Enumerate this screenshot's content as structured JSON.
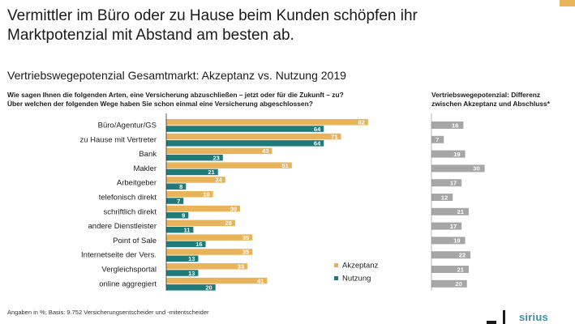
{
  "headline": {
    "line1": "Vermittler im Büro oder zu Hause beim Kunden schöpfen ihr",
    "line2": "Marktpotenzial mit Abstand am besten ab."
  },
  "subtitle": "Vertriebswegepotenzial Gesamtmarkt: Akzeptanz vs. Nutzung 2019",
  "question": {
    "line1": "Wie sagen Ihnen die folgenden Arten, eine Versicherung abzuschließen – jetzt oder für die Zukunft – zu?",
    "line2": "Über welchen der folgenden Wege haben Sie schon einmal eine Versicherung abgeschlossen?"
  },
  "diff_title": {
    "line1": "Vertriebswegepotenzial: Differenz",
    "line2": "zwischen Akzeptanz und Abschluss*"
  },
  "footnote": "Angaben in %; Basis: 9.752 Versicherungsentscheider und -mitentscheider",
  "logo": "sirius",
  "colors": {
    "akzeptanz": "#e9b35a",
    "nutzung": "#1f7a7a",
    "differenz": "#a6a6a6"
  },
  "chart_data": [
    {
      "type": "bar",
      "orientation": "horizontal",
      "categories": [
        "Büro/Agentur/GS",
        "zu Hause mit Vertreter",
        "Bank",
        "Makler",
        "Arbeitgeber",
        "telefonisch direkt",
        "schriftlich direkt",
        "andere Dienstleister",
        "Point of Sale",
        "Internetseite der Vers.",
        "Vergleichsportal",
        "online aggregiert"
      ],
      "series": [
        {
          "name": "Akzeptanz",
          "values": [
            82,
            71,
            43,
            51,
            24,
            19,
            30,
            28,
            35,
            35,
            33,
            41
          ]
        },
        {
          "name": "Nutzung",
          "values": [
            64,
            64,
            23,
            21,
            8,
            7,
            9,
            11,
            16,
            13,
            13,
            20
          ]
        }
      ],
      "xlim": [
        0,
        85
      ],
      "data_labels": true,
      "legend": "bottom-right"
    },
    {
      "type": "bar",
      "orientation": "horizontal",
      "categories": [
        "Büro/Agentur/GS",
        "zu Hause mit Vertreter",
        "Bank",
        "Makler",
        "Arbeitgeber",
        "telefonisch direkt",
        "schriftlich direkt",
        "andere Dienstleister",
        "Point of Sale",
        "Internetseite der Vers.",
        "Vergleichsportal",
        "online aggregiert"
      ],
      "values": [
        18,
        7,
        19,
        30,
        17,
        12,
        21,
        17,
        19,
        22,
        21,
        20
      ],
      "xlim": [
        0,
        32
      ],
      "data_labels": true
    }
  ]
}
